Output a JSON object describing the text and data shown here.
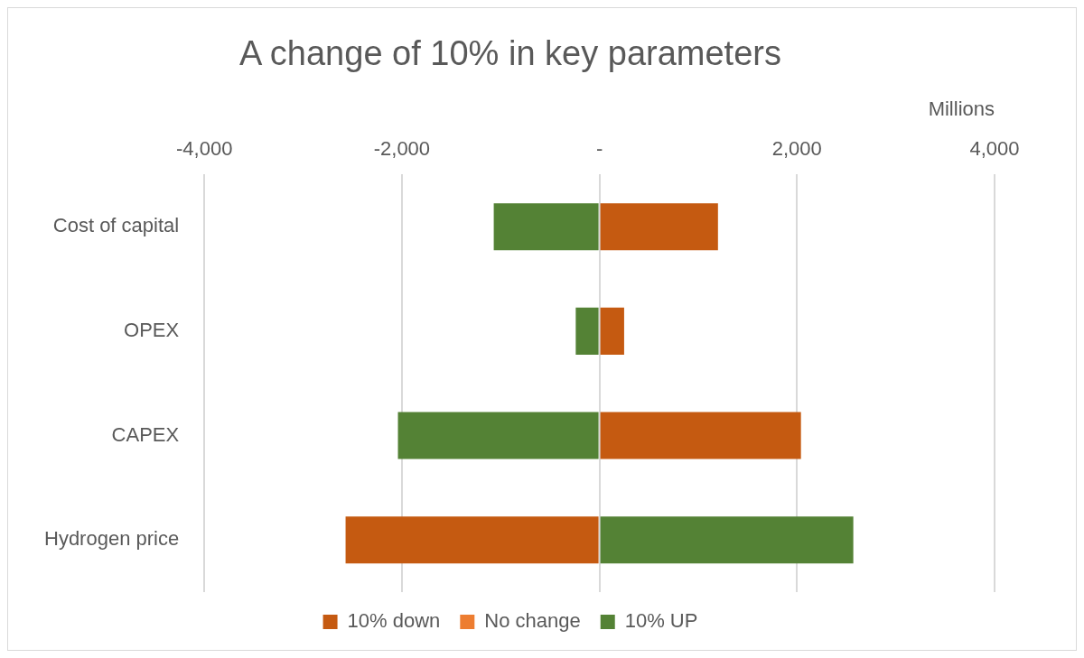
{
  "chart_data": {
    "type": "bar",
    "title": "A change of 10% in key parameters",
    "xlabel": "Millions",
    "orientation": "horizontal",
    "stacked": true,
    "categories": [
      "Cost of capital",
      "OPEX",
      "CAPEX",
      "Hydrogen price"
    ],
    "series": [
      {
        "name": "10% down",
        "color": "#c55a11",
        "values": [
          1200,
          250,
          2040,
          -2570
        ]
      },
      {
        "name": "No change",
        "color": "#ed7d31",
        "values": [
          0,
          0,
          0,
          0
        ]
      },
      {
        "name": "10% UP",
        "color": "#548235",
        "values": [
          -1070,
          -240,
          -2040,
          2570
        ]
      }
    ],
    "xlim": [
      -4000,
      4000
    ],
    "xticks": [
      {
        "value": -4000,
        "label": "-4,000"
      },
      {
        "value": -2000,
        "label": "-2,000"
      },
      {
        "value": 0,
        "label": "-"
      },
      {
        "value": 2000,
        "label": "2,000"
      },
      {
        "value": 4000,
        "label": "4,000"
      }
    ],
    "grid": "x",
    "legend": "bottom"
  }
}
